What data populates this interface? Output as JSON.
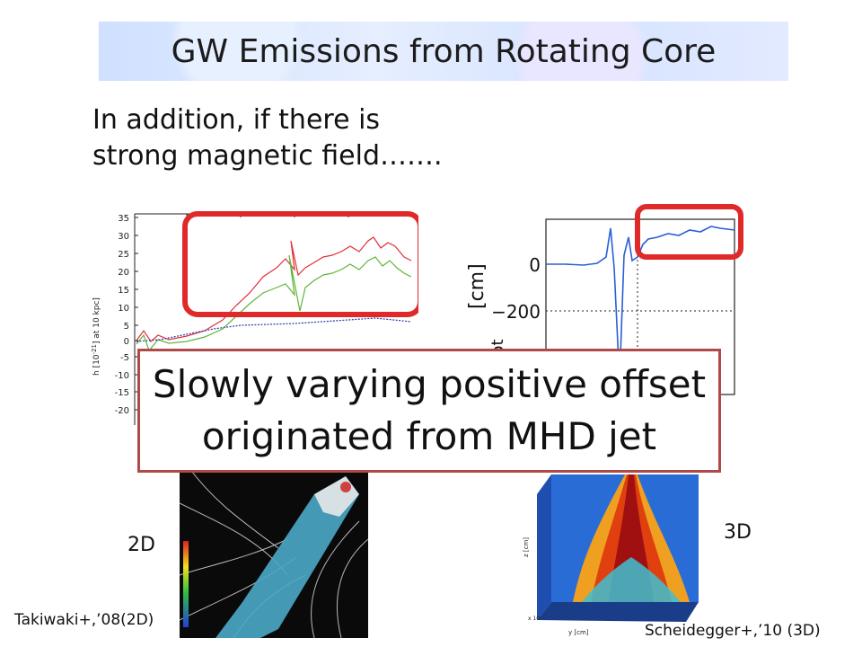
{
  "title": "GW Emissions from Rotating Core",
  "intro": {
    "line1": "In addition, if there is",
    "line2": "strong magnetic field……."
  },
  "callout": {
    "line1": "Slowly varying positive offset",
    "line2": "originated from MHD jet"
  },
  "labels": {
    "left_dim": "2D",
    "right_dim": "3D",
    "left_citation": "Takiwaki+,’08(2D)",
    "right_citation": "Scheidegger+,’10 (3D)"
  },
  "left_plot": {
    "ylabel": "h [10",
    "ylabel_exp": "-21",
    "ylabel_tail": "] at 10 kpc]",
    "yticks": [
      "35",
      "30",
      "25",
      "20",
      "15",
      "10",
      "5",
      "0",
      "-5",
      "-10",
      "-15",
      "-20"
    ],
    "series_colors": [
      "#e0303a",
      "#5fb53a",
      "#2b3aa0"
    ]
  },
  "right_plot": {
    "ylabel": "[cm]",
    "ylabel_sub": "+II,tot",
    "yticks": [
      "0",
      "−200"
    ],
    "line_color": "#2a5fd6"
  },
  "right_sim": {
    "axis_z": "z [cm]",
    "axis_y": "y [cm]",
    "axis_x": "x 10"
  },
  "highlight_color": "#e02a2a",
  "callout_border": "#b04a4a"
}
